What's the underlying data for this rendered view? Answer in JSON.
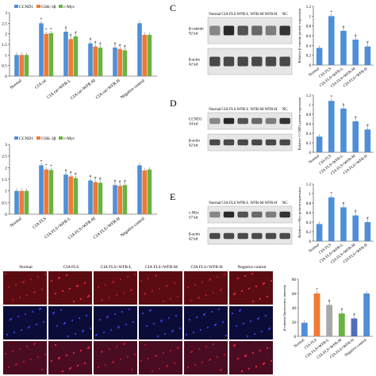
{
  "panels": {
    "A": {
      "chart_data": {
        "type": "bar",
        "categories": [
          "Normal",
          "CIA rat",
          "CIA rat+WFR-L",
          "CIA rat+WFR-M",
          "CIA rat+WFR-H",
          "Negative control"
        ],
        "series": [
          {
            "name": "CCND1",
            "color": "#4f8fd8",
            "values": [
              1.0,
              2.5,
              2.1,
              1.55,
              1.35,
              2.5
            ]
          },
          {
            "name": "GSK-3β",
            "color": "#f07a35",
            "values": [
              1.0,
              2.0,
              1.75,
              1.4,
              1.28,
              1.95
            ]
          },
          {
            "name": "c-Myc",
            "color": "#69b342",
            "values": [
              1.0,
              2.03,
              1.88,
              1.35,
              1.22,
              1.95
            ]
          }
        ],
        "ylim": [
          0,
          3
        ],
        "yticks": [
          "0",
          "0.5",
          "1",
          "1.5",
          "2",
          "2.5",
          "3"
        ],
        "stars": [
          [
            "",
            "",
            ""
          ],
          [
            "*",
            "*",
            "*"
          ],
          [
            "#",
            "#",
            "#"
          ],
          [
            "#",
            "#",
            "#"
          ],
          [
            "#",
            "#",
            "#"
          ],
          [
            "",
            "",
            ""
          ]
        ]
      }
    },
    "B": {
      "chart_data": {
        "type": "bar",
        "categories": [
          "Normal",
          "CIA FLS",
          "CIA FLS+WFR-L",
          "CIA FLS+WFR-M",
          "CIA FLS+WFR-H",
          "Negative control"
        ],
        "series": [
          {
            "name": "CCND1",
            "color": "#4f8fd8",
            "values": [
              1.0,
              2.1,
              1.7,
              1.45,
              1.25,
              2.1
            ]
          },
          {
            "name": "GSK-3β",
            "color": "#f07a35",
            "values": [
              1.0,
              1.92,
              1.62,
              1.38,
              1.22,
              1.88
            ]
          },
          {
            "name": "c-Myc",
            "color": "#69b342",
            "values": [
              1.0,
              1.9,
              1.55,
              1.35,
              1.25,
              1.92
            ]
          }
        ],
        "ylim": [
          0,
          3
        ],
        "yticks": [
          "0",
          "0.5",
          "1",
          "1.5",
          "2",
          "2.5",
          "3"
        ],
        "stars": [
          [
            "",
            "",
            ""
          ],
          [
            "*",
            "*",
            "*"
          ],
          [
            "#",
            "#",
            "#"
          ],
          [
            "#",
            "#",
            "#"
          ],
          [
            "#",
            "#",
            "#"
          ],
          [
            "",
            "",
            ""
          ]
        ]
      }
    },
    "C": {
      "label": "C",
      "blot": {
        "lanes": [
          "Normal",
          "CIA FLS",
          "WFR-L",
          "WFR-M",
          "WFR-H",
          "NC"
        ],
        "rows": [
          {
            "name": "β-catenin",
            "kd": "92 kd"
          },
          {
            "name": "β-actin",
            "kd": "42 kd"
          }
        ]
      },
      "chart_data": {
        "type": "bar",
        "ylabel": "Relative β-catenin protein expression",
        "categories": [
          "Normal",
          "CIA FLS",
          "CIA FLS+WFR-L",
          "CIA FLS+WFR-M",
          "CIA FLS+WFR-H"
        ],
        "values": [
          0.35,
          1.0,
          0.7,
          0.52,
          0.38
        ],
        "ylim": [
          0,
          1.2
        ],
        "yticks": [
          "0",
          "0.2",
          "0.4",
          "0.6",
          "0.8",
          "1",
          "1.2"
        ],
        "stars": [
          "",
          "*",
          "#",
          "#",
          "#"
        ]
      }
    },
    "D": {
      "label": "D",
      "blot": {
        "lanes": [
          "Normal",
          "CIA FLS",
          "WFR-L",
          "WFR-M",
          "WFR-H",
          "NC"
        ],
        "rows": [
          {
            "name": "CCND1",
            "kd": "34 kd"
          },
          {
            "name": "β-actin",
            "kd": "42 kd"
          }
        ]
      },
      "chart_data": {
        "type": "bar",
        "ylabel": "Relative CCND1 protein expression",
        "categories": [
          "Normal",
          "CIA FLS",
          "CIA FLS+WFR-L",
          "CIA FLS+WFR-M",
          "CIA FLS+WFR-H"
        ],
        "values": [
          0.33,
          1.08,
          0.92,
          0.65,
          0.48
        ],
        "ylim": [
          0,
          1.2
        ],
        "yticks": [
          "0",
          "0.2",
          "0.4",
          "0.6",
          "0.8",
          "1",
          "1.2"
        ],
        "stars": [
          "",
          "*",
          "#",
          "#",
          "#"
        ]
      }
    },
    "E": {
      "label": "E",
      "blot": {
        "lanes": [
          "Normal",
          "CIA FLS",
          "WFR-L",
          "WFR-M",
          "WFR-H",
          "NC"
        ],
        "rows": [
          {
            "name": "c-Myc",
            "kd": "57 kd"
          },
          {
            "name": "β-actin",
            "kd": "42 kd"
          }
        ]
      },
      "chart_data": {
        "type": "bar",
        "ylabel": "Relative c-Myc protein expression",
        "categories": [
          "Normal",
          "CIA FLS",
          "CIA FLS+WFR-L",
          "CIA FLS+WFR-M",
          "CIA FLS+WFR-H"
        ],
        "values": [
          0.36,
          0.92,
          0.71,
          0.54,
          0.4
        ],
        "ylim": [
          0,
          1.2
        ],
        "yticks": [
          "0",
          "0.2",
          "0.4",
          "0.6",
          "0.8",
          "1",
          "1.2"
        ],
        "stars": [
          "",
          "*",
          "#",
          "#",
          "#"
        ]
      }
    },
    "F": {
      "grid": {
        "columns": [
          "Normal",
          "CIA FLS",
          "CIA FLS+WFR-L",
          "CIA FLS+WFR-M",
          "CIA FLS+WFR-H",
          "Negative control"
        ],
        "row_colors": [
          "#5a0c12",
          "#0c0c38",
          "#4a0c22"
        ]
      },
      "chart_data": {
        "type": "bar",
        "ylabel": "β-catenin fluorescence intensity",
        "categories": [
          "Normal",
          "CIA FLS",
          "CIA FLS+WFR-L",
          "CIA FLS+WFR-M",
          "CIA FLS+WFR-H",
          "Negative control"
        ],
        "values": [
          19,
          60,
          44,
          32,
          25,
          60
        ],
        "colors": [
          "#4f8fd8",
          "#f07a35",
          "#a8a8a8",
          "#69b342",
          "#4f6fb8",
          "#4f8fd8"
        ],
        "ylim": [
          0,
          80
        ],
        "yticks": [
          "0",
          "20",
          "40",
          "60",
          "80"
        ],
        "stars": [
          "",
          "*",
          "#",
          "#",
          "#",
          ""
        ]
      }
    }
  }
}
